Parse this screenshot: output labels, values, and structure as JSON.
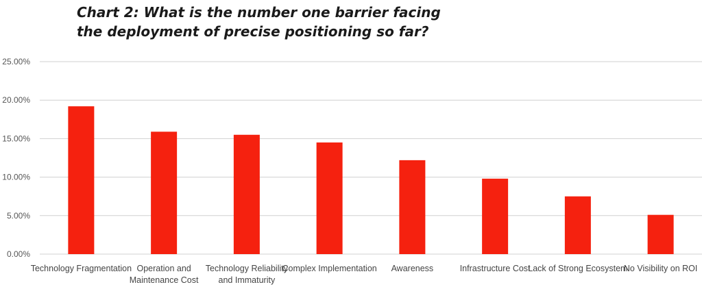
{
  "title_lines": [
    "Chart 2: What is the number one barrier facing",
    "the deployment of precise positioning so far?"
  ],
  "chart_data": {
    "type": "bar",
    "title": "Chart 2: What is the number one barrier facing the deployment of precise positioning so far?",
    "categories": [
      [
        "Technology Fragmentation"
      ],
      [
        "Operation and",
        "Maintenance Cost"
      ],
      [
        "Technology Reliability",
        "and Immaturity"
      ],
      [
        "Complex Implementation"
      ],
      [
        "Awareness"
      ],
      [
        "Infrastructure Cost"
      ],
      [
        "Lack of Strong Ecosystem"
      ],
      [
        "No Visibility on ROI"
      ]
    ],
    "values": [
      19.2,
      15.9,
      15.5,
      14.5,
      12.2,
      9.8,
      7.5,
      5.1
    ],
    "unit": "%",
    "ylim": [
      0,
      25
    ],
    "yticks": [
      0,
      5,
      10,
      15,
      20,
      25
    ],
    "ytick_labels": [
      "0.00%",
      "5.00%",
      "10.00%",
      "15.00%",
      "20.00%",
      "25.00%"
    ],
    "grid": true,
    "bar_color": "#f5210f",
    "grid_color": "#d0d0d0"
  }
}
